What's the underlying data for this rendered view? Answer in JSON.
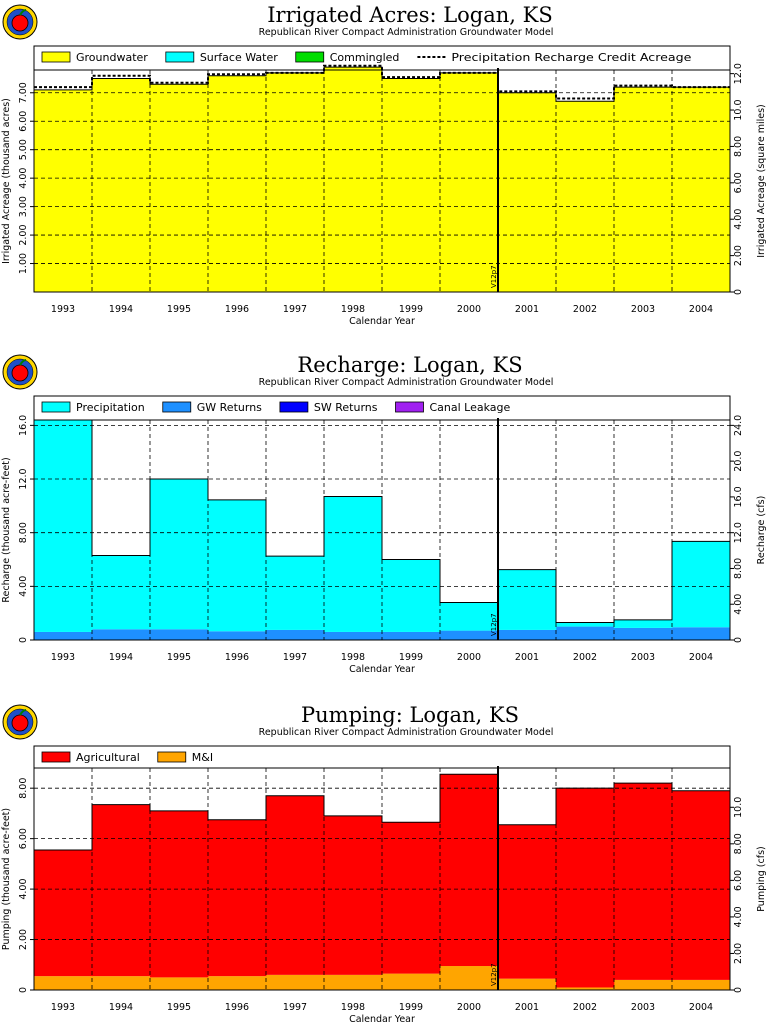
{
  "chart_data": [
    {
      "type": "area",
      "title": "Irrigated Acres: Logan, KS",
      "subtitle": "Republican River Compact Administration Groundwater Model",
      "xlabel": "Calendar Year",
      "ylabel": "Irrigated Acreage (thousand acres)",
      "y2label": "Irrigated Acreage (square miles)",
      "categories": [
        "1993",
        "1994",
        "1995",
        "1996",
        "1997",
        "1998",
        "1999",
        "2000",
        "2001",
        "2002",
        "2003",
        "2004"
      ],
      "ylim": [
        0,
        7.8
      ],
      "yticks": [
        "1.00",
        "2.00",
        "3.00",
        "4.00",
        "5.00",
        "6.00",
        "7.00"
      ],
      "y2lim": [
        0,
        12.2
      ],
      "y2ticks": [
        "0",
        "2.00",
        "4.00",
        "6.00",
        "8.00",
        "10.0",
        "12.0"
      ],
      "marker_label": "V12p7",
      "marker_after": "2000",
      "legend_position": "top",
      "series": [
        {
          "name": "Groundwater",
          "color": "#ffff00",
          "values": [
            7.1,
            7.5,
            7.3,
            7.6,
            7.7,
            7.9,
            7.5,
            7.7,
            7.0,
            6.7,
            7.2,
            7.2
          ]
        },
        {
          "name": "Surface Water",
          "color": "#00ffff",
          "values": [
            0,
            0,
            0,
            0,
            0,
            0,
            0,
            0,
            0,
            0,
            0,
            0
          ]
        },
        {
          "name": "Commingled",
          "color": "#00dd00",
          "values": [
            0,
            0,
            0,
            0,
            0,
            0,
            0,
            0,
            0,
            0,
            0,
            0
          ]
        }
      ],
      "line_series": {
        "name": "Precipitation Recharge Credit Acreage",
        "values": [
          7.2,
          7.6,
          7.35,
          7.65,
          7.7,
          7.95,
          7.55,
          7.7,
          7.05,
          6.8,
          7.25,
          7.2
        ]
      }
    },
    {
      "type": "area",
      "title": "Recharge: Logan, KS",
      "subtitle": "Republican River Compact Administration Groundwater Model",
      "xlabel": "Calendar Year",
      "ylabel": "Recharge (thousand acre-feet)",
      "y2label": "Recharge (cfs)",
      "categories": [
        "1993",
        "1994",
        "1995",
        "1996",
        "1997",
        "1998",
        "1999",
        "2000",
        "2001",
        "2002",
        "2003",
        "2004"
      ],
      "ylim": [
        0,
        16.4
      ],
      "yticks": [
        "0",
        "4.00",
        "8.00",
        "12.0",
        "16.0"
      ],
      "y2lim": [
        0,
        24.6
      ],
      "y2ticks": [
        "0",
        "4.00",
        "8.00",
        "12.0",
        "16.0",
        "20.0",
        "24.0"
      ],
      "marker_label": "V12p7",
      "marker_after": "2000",
      "legend_position": "top",
      "series": [
        {
          "name": "GW Returns",
          "color": "#1e90ff",
          "values": [
            0.6,
            0.8,
            0.8,
            0.65,
            0.75,
            0.6,
            0.6,
            0.7,
            0.75,
            1.0,
            0.9,
            0.95
          ]
        },
        {
          "name": "SW Returns",
          "color": "#0000ff",
          "values": [
            0,
            0,
            0,
            0,
            0,
            0,
            0,
            0,
            0,
            0,
            0,
            0
          ]
        },
        {
          "name": "Canal Leakage",
          "color": "#a020f0",
          "values": [
            0,
            0,
            0,
            0,
            0,
            0,
            0,
            0,
            0,
            0,
            0,
            0
          ]
        },
        {
          "name": "Precipitation",
          "color": "#00ffff",
          "values": [
            15.8,
            5.5,
            11.2,
            9.8,
            5.5,
            10.1,
            5.4,
            2.1,
            4.5,
            0.3,
            0.6,
            6.4
          ]
        }
      ]
    },
    {
      "type": "area",
      "title": "Pumping: Logan, KS",
      "subtitle": "Republican River Compact Administration Groundwater Model",
      "xlabel": "Calendar Year",
      "ylabel": "Pumping (thousand acre-feet)",
      "y2label": "Pumping (cfs)",
      "categories": [
        "1993",
        "1994",
        "1995",
        "1996",
        "1997",
        "1998",
        "1999",
        "2000",
        "2001",
        "2002",
        "2003",
        "2004"
      ],
      "ylim": [
        0,
        8.8
      ],
      "yticks": [
        "0",
        "2.00",
        "4.00",
        "6.00",
        "8.00"
      ],
      "y2lim": [
        0,
        12.15
      ],
      "y2ticks": [
        "0",
        "2.00",
        "4.00",
        "6.00",
        "8.00",
        "10.0"
      ],
      "marker_label": "V12p7",
      "marker_after": "2000",
      "legend_position": "top",
      "series": [
        {
          "name": "M&I",
          "color": "#ffa500",
          "values": [
            0.55,
            0.55,
            0.5,
            0.55,
            0.6,
            0.6,
            0.65,
            0.95,
            0.45,
            0.1,
            0.4,
            0.4
          ]
        },
        {
          "name": "Agricultural",
          "color": "#ff0000",
          "values": [
            5.0,
            6.8,
            6.6,
            6.2,
            7.1,
            6.3,
            6.0,
            7.6,
            6.1,
            7.9,
            7.8,
            7.5
          ]
        }
      ]
    }
  ]
}
